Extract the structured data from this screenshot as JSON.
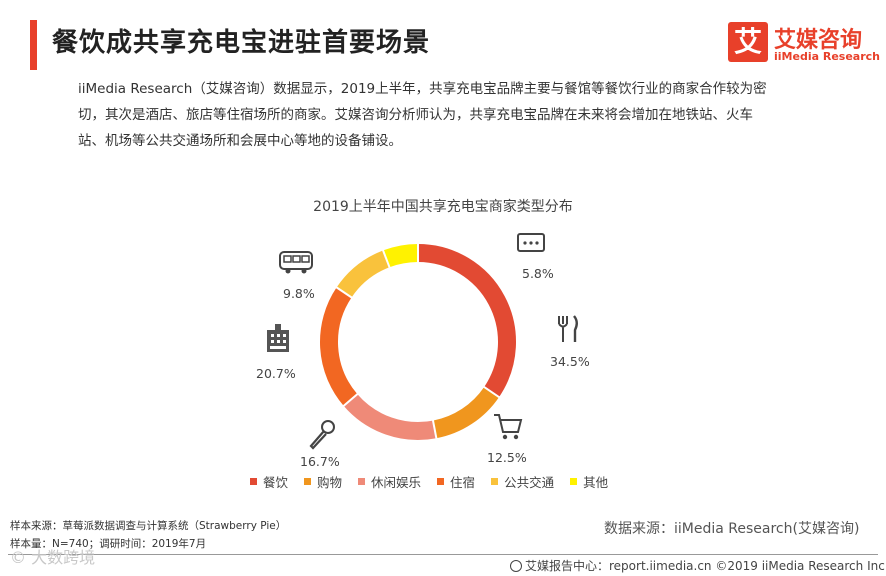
{
  "header": {
    "title": "餐饮成共享充电宝进驻首要场景",
    "logo_mark": "艾",
    "logo_cn": "艾媒咨询",
    "logo_en": "iiMedia Research"
  },
  "intro_lines": [
    "iiMedia Research（艾媒咨询）数据显示，2019上半年，共享充电宝品牌主要与餐馆等餐饮行业的商家合作较为密",
    "切，其次是酒店、旅店等住宿场所的商家。艾媒咨询分析师认为，共享充电宝品牌在未来将会增加在地铁站、火车",
    "站、机场等公共交通场所和会展中心等地的设备铺设。"
  ],
  "chart_data": {
    "type": "pie",
    "variant": "donut",
    "title": "2019上半年中国共享充电宝商家类型分布",
    "categories": [
      "餐饮",
      "购物",
      "休闲娱乐",
      "住宿",
      "公共交通",
      "其他"
    ],
    "values": [
      34.5,
      12.5,
      16.7,
      20.7,
      9.8,
      5.8
    ],
    "value_labels": [
      "34.5%",
      "12.5%",
      "16.7%",
      "20.7%",
      "9.8%",
      "5.8%"
    ],
    "colors": [
      "#e24a33",
      "#f0961e",
      "#ef8a78",
      "#f26722",
      "#f9c23c",
      "#fff200"
    ],
    "icons": [
      "fork-knife-icon",
      "shopping-cart-icon",
      "microphone-icon",
      "hotel-icon",
      "bus-icon",
      "chat-bubble-icon"
    ],
    "legend_position": "bottom"
  },
  "notes": {
    "sample_source": "样本来源：草莓派数据调查与计算系统（Strawberry Pie）",
    "sample_size": "样本量：N=740；调研时间：2019年7月"
  },
  "source": "数据来源：iiMedia Research(艾媒咨询)",
  "footer": "艾媒报告中心：report.iimedia.cn  ©2019  iiMedia Research Inc",
  "watermark": "© 大数跨境"
}
